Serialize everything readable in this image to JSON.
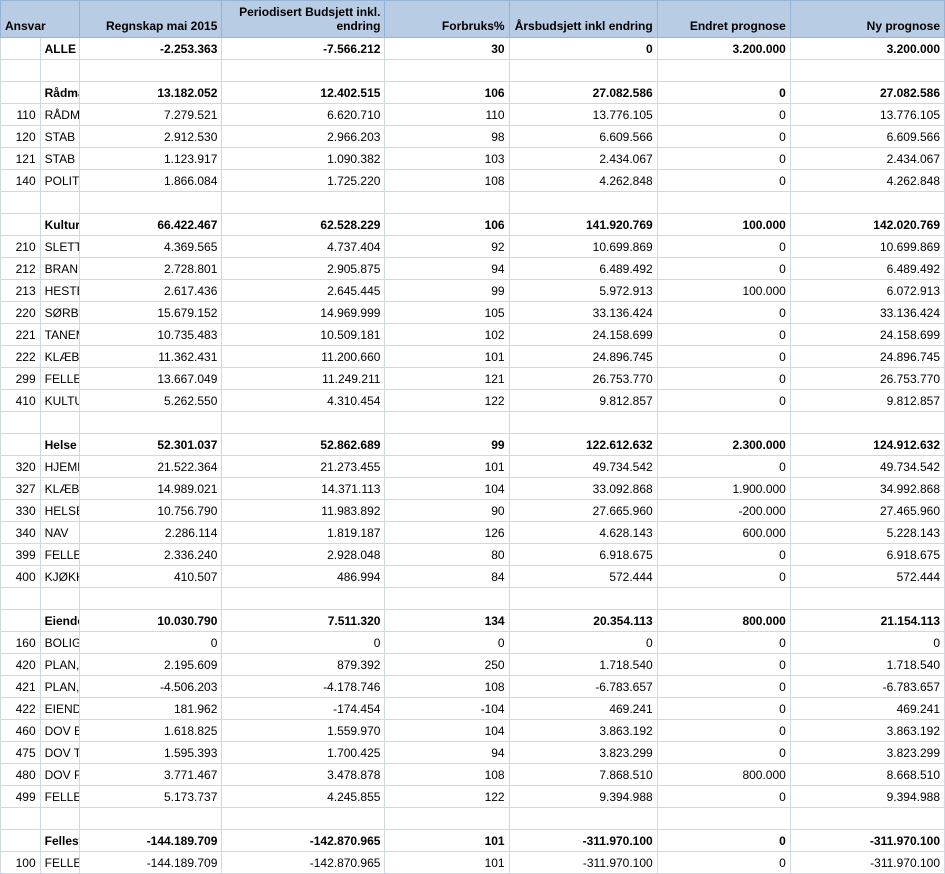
{
  "columns": {
    "ansvar": "Ansvar",
    "regnskap": "Regnskap mai 2015",
    "periodisert": "Periodisert Budsjett inkl. endring",
    "forbruk": "Forbruks%",
    "arsbudsjett": "Årsbudsjett inkl endring",
    "endret": "Endret prognose",
    "ny": "Ny prognose"
  },
  "rows": [
    {
      "bold": true,
      "code": "",
      "label": "ALLE",
      "regn": "-2.253.363",
      "per": "-7.566.212",
      "fb": "30",
      "ars": "0",
      "end": "3.200.000",
      "ny": "3.200.000"
    },
    {
      "blank": true
    },
    {
      "bold": true,
      "code": "",
      "label": "Rådmannen",
      "regn": "13.182.052",
      "per": "12.402.515",
      "fb": "106",
      "ars": "27.082.586",
      "end": "0",
      "ny": "27.082.586"
    },
    {
      "code": "110",
      "label": "RÅDMANNEN",
      "regn": "7.279.521",
      "per": "6.620.710",
      "fb": "110",
      "ars": "13.776.105",
      "end": "0",
      "ny": "13.776.105"
    },
    {
      "code": "120",
      "label": "STAB",
      "regn": "2.912.530",
      "per": "2.966.203",
      "fb": "98",
      "ars": "6.609.566",
      "end": "0",
      "ny": "6.609.566"
    },
    {
      "code": "121",
      "label": "STAB POST & ARKIV",
      "regn": "1.123.917",
      "per": "1.090.382",
      "fb": "103",
      "ars": "2.434.067",
      "end": "0",
      "ny": "2.434.067"
    },
    {
      "code": "140",
      "label": "POLITISKE ORGANER",
      "regn": "1.866.084",
      "per": "1.725.220",
      "fb": "108",
      "ars": "4.262.848",
      "end": "0",
      "ny": "4.262.848"
    },
    {
      "blank": true
    },
    {
      "bold": true,
      "code": "",
      "label": "Kultur og oppvekst",
      "regn": "66.422.467",
      "per": "62.528.229",
      "fb": "106",
      "ars": "141.920.769",
      "end": "100.000",
      "ny": "142.020.769"
    },
    {
      "code": "210",
      "label": "SLETTEN BARNEHAGE",
      "regn": "4.369.565",
      "per": "4.737.404",
      "fb": "92",
      "ars": "10.699.869",
      "end": "0",
      "ny": "10.699.869"
    },
    {
      "code": "212",
      "label": "BRANNÅSEN BARNEHAGE",
      "regn": "2.728.801",
      "per": "2.905.875",
      "fb": "94",
      "ars": "6.489.492",
      "end": "0",
      "ny": "6.489.492"
    },
    {
      "code": "213",
      "label": "HESTESKOEN BARNEHAGE",
      "regn": "2.617.436",
      "per": "2.645.445",
      "fb": "99",
      "ars": "5.972.913",
      "end": "100.000",
      "ny": "6.072.913"
    },
    {
      "code": "220",
      "label": "SØRBORGEN SKOLE",
      "regn": "15.679.152",
      "per": "14.969.999",
      "fb": "105",
      "ars": "33.136.424",
      "end": "0",
      "ny": "33.136.424"
    },
    {
      "code": "221",
      "label": "TANEM OPPVEKSTSENTER",
      "regn": "10.735.483",
      "per": "10.509.181",
      "fb": "102",
      "ars": "24.158.699",
      "end": "0",
      "ny": "24.158.699"
    },
    {
      "code": "222",
      "label": "KLÆBU UNGDOMSSKOLE",
      "regn": "11.362.431",
      "per": "11.200.660",
      "fb": "101",
      "ars": "24.896.745",
      "end": "0",
      "ny": "24.896.745"
    },
    {
      "code": "299",
      "label": "FELLESUTGIFTER KULTUR OG OPPVEKST",
      "regn": "13.667.049",
      "per": "11.249.211",
      "fb": "121",
      "ars": "26.753.770",
      "end": "0",
      "ny": "26.753.770"
    },
    {
      "code": "410",
      "label": "KULTUR, IDRETT OG FRITID",
      "regn": "5.262.550",
      "per": "4.310.454",
      "fb": "122",
      "ars": "9.812.857",
      "end": "0",
      "ny": "9.812.857"
    },
    {
      "blank": true
    },
    {
      "bold": true,
      "code": "",
      "label": "Helse og omsorg",
      "regn": "52.301.037",
      "per": "52.862.689",
      "fb": "99",
      "ars": "122.612.632",
      "end": "2.300.000",
      "ny": "124.912.632"
    },
    {
      "code": "320",
      "label": "HJEMMETJENESTEN",
      "regn": "21.522.364",
      "per": "21.273.455",
      "fb": "101",
      "ars": "49.734.542",
      "end": "0",
      "ny": "49.734.542"
    },
    {
      "code": "327",
      "label": "KLÆBU SYKEHJEM",
      "regn": "14.989.021",
      "per": "14.371.113",
      "fb": "104",
      "ars": "33.092.868",
      "end": "1.900.000",
      "ny": "34.992.868"
    },
    {
      "code": "330",
      "label": "HELSE- OG FAMILIETJENESTEN",
      "regn": "10.756.790",
      "per": "11.983.892",
      "fb": "90",
      "ars": "27.665.960",
      "end": "-200.000",
      "ny": "27.465.960"
    },
    {
      "code": "340",
      "label": "NAV",
      "regn": "2.286.114",
      "per": "1.819.187",
      "fb": "126",
      "ars": "4.628.143",
      "end": "600.000",
      "ny": "5.228.143"
    },
    {
      "code": "399",
      "label": "FELLESUTGIFTER HELSE OG OMSORG",
      "regn": "2.336.240",
      "per": "2.928.048",
      "fb": "80",
      "ars": "6.918.675",
      "end": "0",
      "ny": "6.918.675"
    },
    {
      "code": "400",
      "label": "KJØKKENENHETEN",
      "regn": "410.507",
      "per": "486.994",
      "fb": "84",
      "ars": "572.444",
      "end": "0",
      "ny": "572.444"
    },
    {
      "blank": true
    },
    {
      "bold": true,
      "code": "",
      "label": "Eiendom og kommunalteknikk",
      "regn": "10.030.790",
      "per": "7.511.320",
      "fb": "134",
      "ars": "20.354.113",
      "end": "800.000",
      "ny": "21.154.113"
    },
    {
      "code": "160",
      "label": "BOLIGKONTOR",
      "regn": "0",
      "per": "0",
      "fb": "0",
      "ars": "0",
      "end": "0",
      "ny": "0"
    },
    {
      "code": "420",
      "label": "PLAN, EIENDOM OG KOMMUNALTEKNIKK",
      "regn": "2.195.609",
      "per": "879.392",
      "fb": "250",
      "ars": "1.718.540",
      "end": "0",
      "ny": "1.718.540"
    },
    {
      "code": "421",
      "label": "PLAN, EIENDOM OG KOMMUNALTEKNIKK - VVA",
      "regn": "-4.506.203",
      "per": "-4.178.746",
      "fb": "108",
      "ars": "-6.783.657",
      "end": "0",
      "ny": "-6.783.657"
    },
    {
      "code": "422",
      "label": "EIENDOMSKONTORET",
      "regn": "181.962",
      "per": "-174.454",
      "fb": "-104",
      "ars": "469.241",
      "end": "0",
      "ny": "469.241"
    },
    {
      "code": "460",
      "label": "DOV BYGG OG EIENDOM",
      "regn": "1.618.825",
      "per": "1.559.970",
      "fb": "104",
      "ars": "3.863.192",
      "end": "0",
      "ny": "3.863.192"
    },
    {
      "code": "475",
      "label": "DOV TEKNISKE TJENESTER (VA + VEG)",
      "regn": "1.595.393",
      "per": "1.700.425",
      "fb": "94",
      "ars": "3.823.299",
      "end": "0",
      "ny": "3.823.299"
    },
    {
      "code": "480",
      "label": "DOV RENHOLDERE",
      "regn": "3.771.467",
      "per": "3.478.878",
      "fb": "108",
      "ars": "7.868.510",
      "end": "800.000",
      "ny": "8.668.510"
    },
    {
      "code": "499",
      "label": "FELLESUTGIFTER TEKNISK OMRÅDE",
      "regn": "5.173.737",
      "per": "4.245.855",
      "fb": "122",
      "ars": "9.394.988",
      "end": "0",
      "ny": "9.394.988"
    },
    {
      "blank": true
    },
    {
      "bold": true,
      "code": "",
      "label": "Fellesformål",
      "regn": "-144.189.709",
      "per": "-142.870.965",
      "fb": "101",
      "ars": "-311.970.100",
      "end": "0",
      "ny": "-311.970.100"
    },
    {
      "code": "100",
      "label": "FELLESFORMÅL",
      "regn": "-144.189.709",
      "per": "-142.870.965",
      "fb": "101",
      "ars": "-311.970.100",
      "end": "0",
      "ny": "-311.970.100"
    }
  ]
}
